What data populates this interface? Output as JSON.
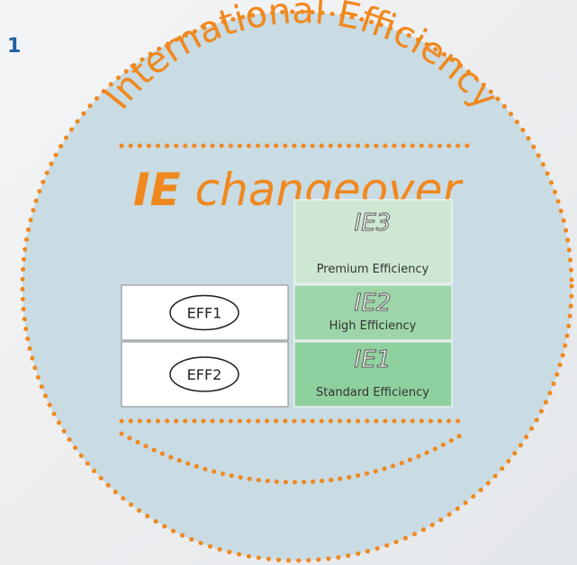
{
  "figure_number": "1",
  "arc_text": "International Efficiency",
  "heading": {
    "bold": "IE",
    "rest": "changeover"
  },
  "old_classes": [
    "EFF1",
    "EFF2"
  ],
  "ie_classes": [
    {
      "code": "IE3",
      "label": "Premium Efficiency"
    },
    {
      "code": "IE2",
      "label": "High Efficiency"
    },
    {
      "code": "IE1",
      "label": "Standard Efficiency"
    }
  ]
}
